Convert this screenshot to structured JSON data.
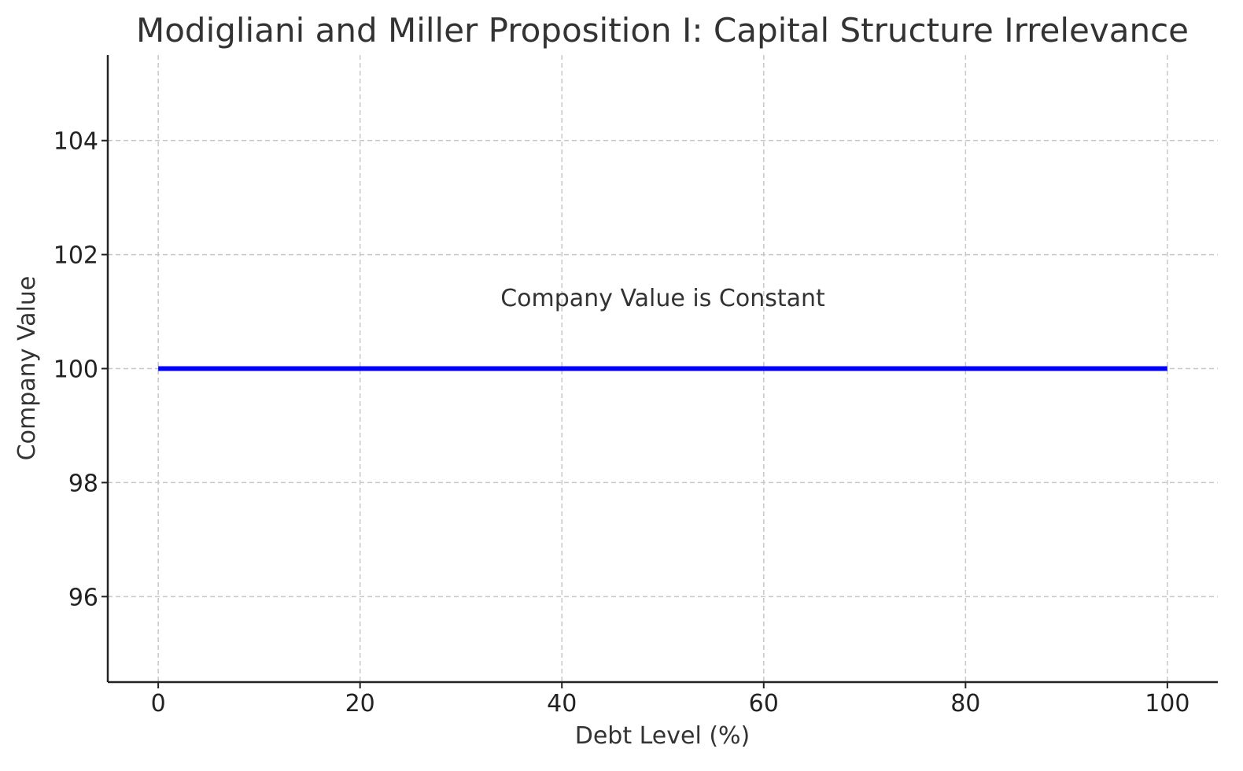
{
  "chart_data": {
    "type": "line",
    "title": "Modigliani and Miller Proposition I: Capital Structure Irrelevance",
    "xlabel": "Debt Level (%)",
    "ylabel": "Company Value",
    "xlim": [
      -5,
      105
    ],
    "ylim": [
      94.5,
      105.5
    ],
    "xticks": [
      0,
      20,
      40,
      60,
      80,
      100
    ],
    "yticks": [
      96,
      98,
      100,
      102,
      104
    ],
    "grid": true,
    "series": [
      {
        "color": "#0000ff",
        "x": [
          0,
          100
        ],
        "y": [
          100,
          100
        ]
      }
    ],
    "annotations": [
      {
        "text": "Company Value is Constant",
        "x": 50,
        "y": 101.1
      }
    ]
  }
}
